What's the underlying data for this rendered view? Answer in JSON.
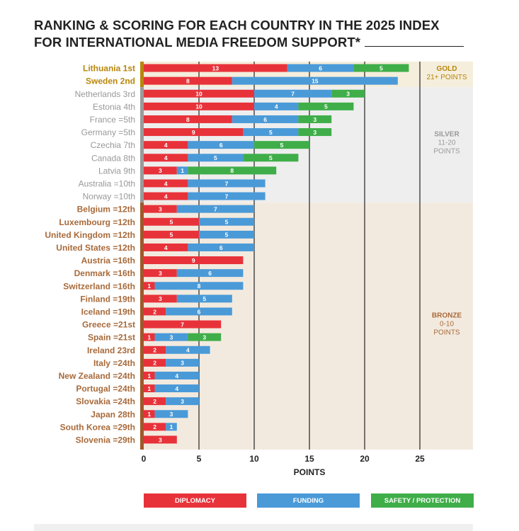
{
  "chart_data": {
    "type": "bar",
    "orientation": "horizontal-stacked",
    "title": "RANKING & SCORING FOR EACH COUNTRY IN THE 2025 INDEX FOR INTERNATIONAL MEDIA FREEDOM SUPPORT*",
    "title_line1": "RANKING & SCORING FOR EACH COUNTRY IN THE 2025 INDEX",
    "title_line2": "FOR INTERNATIONAL MEDIA FREEDOM SUPPORT*",
    "xlabel": "POINTS",
    "xlim": [
      0,
      30
    ],
    "xticks": [
      0,
      5,
      10,
      15,
      20,
      25
    ],
    "categories": [
      "Lithuania 1st",
      "Sweden 2nd",
      "Netherlands 3rd",
      "Estonia 4th",
      "France =5th",
      "Germany =5th",
      "Czechia 7th",
      "Canada 8th",
      "Latvia 9th",
      "Australia =10th",
      "Norway =10th",
      "Belgium =12th",
      "Luxembourg =12th",
      "United Kingdom =12th",
      "United States =12th",
      "Austria =16th",
      "Denmark =16th",
      "Switzerland =16th",
      "Finland =19th",
      "Iceland =19th",
      "Greece =21st",
      "Spain =21st",
      "Ireland 23rd",
      "Italy =24th",
      "New Zealand =24th",
      "Portugal =24th",
      "Slovakia =24th",
      "Japan 28th",
      "South Korea =29th",
      "Slovenia =29th"
    ],
    "tiers": [
      "gold",
      "gold",
      "silver",
      "silver",
      "silver",
      "silver",
      "silver",
      "silver",
      "silver",
      "silver",
      "silver",
      "bronze",
      "bronze",
      "bronze",
      "bronze",
      "bronze",
      "bronze",
      "bronze",
      "bronze",
      "bronze",
      "bronze",
      "bronze",
      "bronze",
      "bronze",
      "bronze",
      "bronze",
      "bronze",
      "bronze",
      "bronze",
      "bronze"
    ],
    "series": [
      {
        "name": "DIPLOMACY",
        "color": "#e8323a",
        "values": [
          13,
          8,
          10,
          10,
          8,
          9,
          4,
          4,
          3,
          4,
          4,
          3,
          5,
          5,
          4,
          9,
          3,
          1,
          3,
          2,
          7,
          1,
          2,
          2,
          1,
          1,
          2,
          1,
          2,
          3
        ]
      },
      {
        "name": "FUNDING",
        "color": "#4a9ad8",
        "values": [
          6,
          15,
          7,
          4,
          6,
          5,
          6,
          5,
          1,
          7,
          7,
          7,
          5,
          5,
          6,
          0,
          6,
          8,
          5,
          6,
          0,
          3,
          4,
          3,
          4,
          4,
          3,
          3,
          1,
          0
        ]
      },
      {
        "name": "SAFETY / PROTECTION",
        "color": "#3fae49",
        "values": [
          5,
          0,
          3,
          5,
          3,
          3,
          5,
          5,
          8,
          0,
          0,
          0,
          0,
          0,
          0,
          0,
          0,
          0,
          0,
          0,
          0,
          3,
          0,
          0,
          0,
          0,
          0,
          0,
          0,
          0
        ]
      }
    ],
    "bands": [
      {
        "name": "GOLD",
        "range": "21+ POINTS",
        "color": "#b8860b",
        "bg": "#f5eedc",
        "label_color": "#b8860b"
      },
      {
        "name": "SILVER",
        "range": "11-20",
        "range2": "POINTS",
        "color": "#9a9a9a",
        "bg": "#eeeeee",
        "label_color": "#999999"
      },
      {
        "name": "BRONZE",
        "range": "0-10",
        "range2": "POINTS",
        "color": "#a0582a",
        "bg": "#f3eadf",
        "label_color": "#a86a3a"
      }
    ],
    "legend_placement": "bottom"
  }
}
